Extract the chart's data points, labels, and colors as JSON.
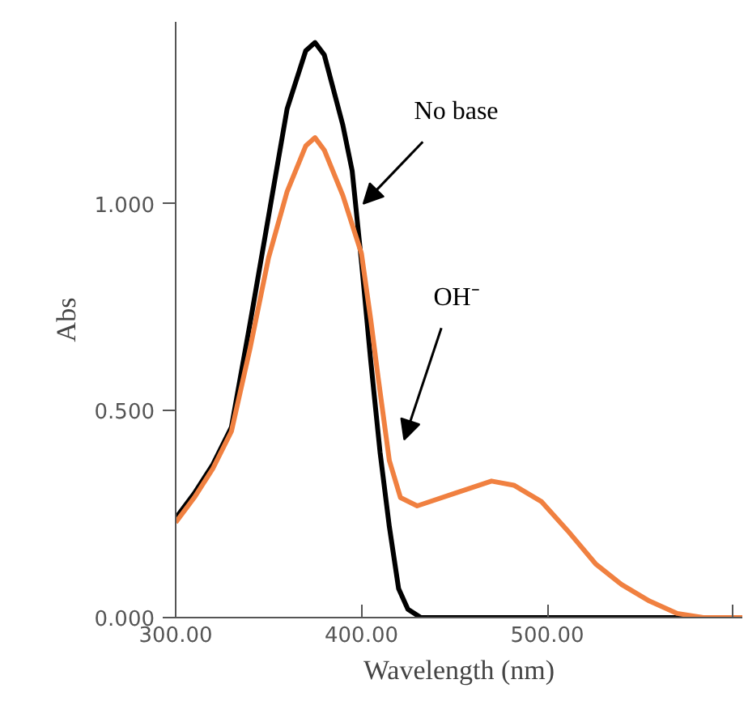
{
  "chart_data": {
    "type": "line",
    "xlabel": "Wavelength (nm)",
    "ylabel": "Abs",
    "xlim": [
      300,
      605
    ],
    "ylim": [
      0,
      1.44
    ],
    "xticks": [
      {
        "value": 300,
        "label": "300.00"
      },
      {
        "value": 400,
        "label": "400.00"
      },
      {
        "value": 500,
        "label": "500.00"
      },
      {
        "value": 600,
        "label": null
      }
    ],
    "yticks": [
      {
        "value": 0,
        "label": "0.000"
      },
      {
        "value": 0.5,
        "label": "0.500"
      },
      {
        "value": 1.0,
        "label": "1.000"
      }
    ],
    "grid": false,
    "legend": false,
    "marker": "none",
    "line_style": "solid",
    "series": [
      {
        "name": "No base",
        "color": "#000000",
        "x": [
          300,
          310,
          320,
          330,
          340,
          350,
          360,
          370,
          375,
          380,
          390,
          395,
          400,
          405,
          410,
          415,
          420,
          425,
          432,
          450,
          500,
          550,
          605
        ],
        "values": [
          0.24,
          0.3,
          0.37,
          0.46,
          0.71,
          0.97,
          1.23,
          1.37,
          1.39,
          1.36,
          1.19,
          1.08,
          0.86,
          0.62,
          0.4,
          0.22,
          0.07,
          0.02,
          0,
          0,
          0,
          0,
          0
        ]
      },
      {
        "name": "OH⁻",
        "color": "#f08040",
        "x": [
          300,
          310,
          320,
          330,
          340,
          350,
          360,
          370,
          375,
          380,
          390,
          400,
          405,
          409,
          415,
          421,
          430,
          450,
          470,
          482,
          497,
          511,
          526,
          540,
          555,
          570,
          584,
          605
        ],
        "values": [
          0.23,
          0.29,
          0.36,
          0.45,
          0.65,
          0.87,
          1.03,
          1.14,
          1.16,
          1.13,
          1.02,
          0.88,
          0.72,
          0.58,
          0.38,
          0.29,
          0.27,
          0.3,
          0.33,
          0.32,
          0.28,
          0.21,
          0.13,
          0.08,
          0.04,
          0.01,
          0,
          0
        ]
      }
    ]
  }
}
